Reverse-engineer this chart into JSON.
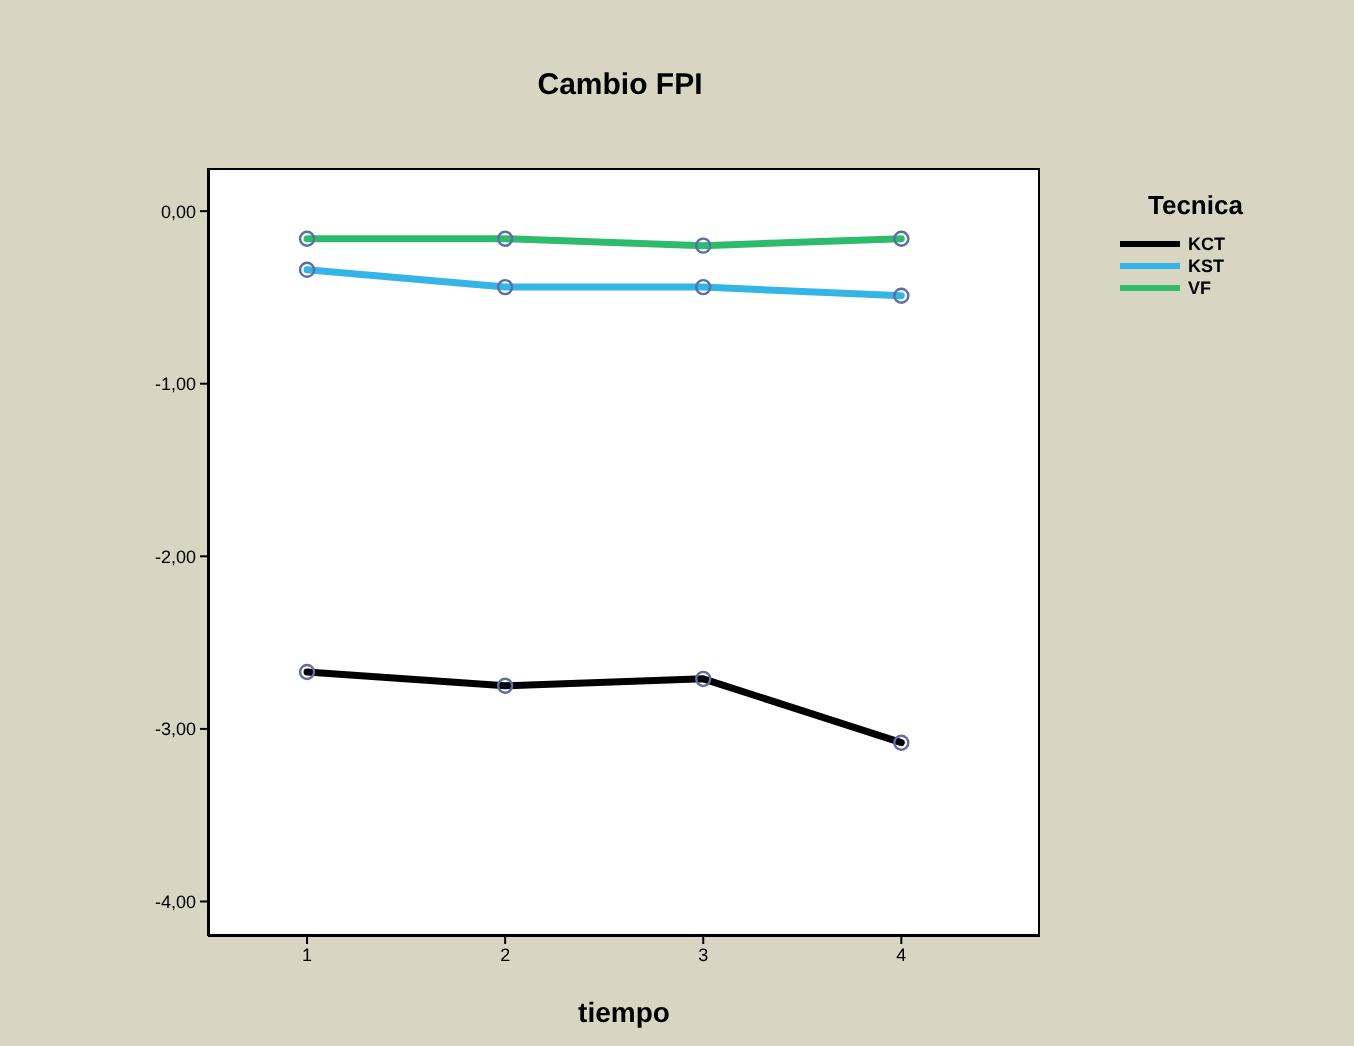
{
  "chart_data": {
    "type": "line",
    "title": "Cambio FPI",
    "xlabel": "tiempo",
    "legend_title": "Tecnica",
    "x": [
      1,
      2,
      3,
      4
    ],
    "series": [
      {
        "name": "KCT",
        "color": "#000000",
        "values": [
          -2.67,
          -2.75,
          -2.71,
          -3.08
        ]
      },
      {
        "name": "KST",
        "color": "#33b5e8",
        "values": [
          -0.34,
          -0.44,
          -0.44,
          -0.49
        ]
      },
      {
        "name": "VF",
        "color": "#2fbb6c",
        "values": [
          -0.16,
          -0.16,
          -0.2,
          -0.16
        ]
      }
    ],
    "xlim": [
      0.5,
      4.7
    ],
    "xticks": [
      1,
      2,
      3,
      4
    ],
    "ylim": [
      -4.2,
      0.25
    ],
    "yticks": [
      {
        "value": 0,
        "label": "0,00"
      },
      {
        "value": -1,
        "label": "-1,00"
      },
      {
        "value": -2,
        "label": "-2,00"
      },
      {
        "value": -3,
        "label": "-3,00"
      },
      {
        "value": -4,
        "label": "-4,00"
      }
    ],
    "legend": "right",
    "grid": false,
    "marker": "circle",
    "line_style": "solid"
  }
}
